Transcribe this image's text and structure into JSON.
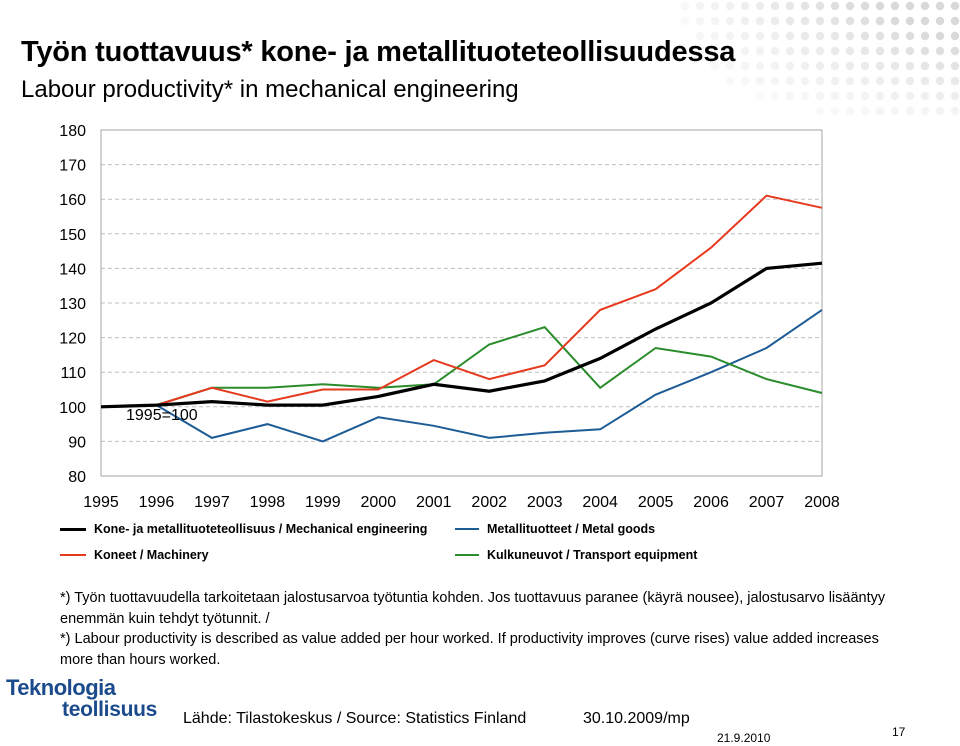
{
  "header": {
    "title": "Työn tuottavuus* kone- ja metallituoteteollisuudessa",
    "subtitle": "Labour productivity* in mechanical engineering"
  },
  "chart_data": {
    "type": "line",
    "x": [
      "1995",
      "1996",
      "1997",
      "1998",
      "1999",
      "2000",
      "2001",
      "2002",
      "2003",
      "2004",
      "2005",
      "2006",
      "2007",
      "2008"
    ],
    "ylim": [
      80,
      180
    ],
    "yticks": [
      "80",
      "90",
      "100",
      "110",
      "120",
      "130",
      "140",
      "150",
      "160",
      "170",
      "180"
    ],
    "grid": true,
    "annotation": "1995=100",
    "legend_position": "bottom",
    "series": [
      {
        "name": "Kone- ja metallituoteteollisuus / Mechanical engineering",
        "color": "#000000",
        "values": [
          100,
          100.5,
          101.5,
          100.5,
          100.5,
          103,
          106.5,
          104.5,
          107.5,
          114,
          122.5,
          130,
          140,
          141.5
        ]
      },
      {
        "name": "Koneet / Machinery",
        "color": "#e63a1f",
        "values": [
          100,
          100.5,
          105.5,
          101.5,
          105,
          105,
          113.5,
          108,
          112,
          128,
          134,
          146,
          161,
          157.5
        ]
      },
      {
        "name": "Metallituotteet / Metal goods",
        "color": "#1e5c96",
        "values": [
          100,
          100.5,
          91,
          95,
          90,
          97,
          94.5,
          91,
          92.5,
          93.5,
          103.5,
          110,
          117,
          128
        ]
      },
      {
        "name": "Kulkuneuvot / Transport equipment",
        "color": "#2a8c2a",
        "values": [
          100,
          100.5,
          105.5,
          105.5,
          106.5,
          105.5,
          106.5,
          118,
          123,
          105.5,
          117,
          114.5,
          108,
          104
        ]
      }
    ]
  },
  "notes": {
    "fi": "*) Työn tuottavuudella tarkoitetaan jalostusarvoa työtuntia kohden. Jos tuottavuus paranee (käyrä nousee), jalostusarvo lisääntyy enemmän kuin tehdyt työtunnit. /",
    "en": "*) Labour productivity is described as value added per hour worked. If productivity improves (curve rises) value added increases more than hours worked."
  },
  "footer": {
    "logo_line1": "Teknologia",
    "logo_line2": "teollisuus",
    "source": "Lähde: Tilastokeskus / Source: Statistics Finland",
    "date": "30.10.2009/mp",
    "date2": "21.9.2010",
    "page_number": "17"
  }
}
